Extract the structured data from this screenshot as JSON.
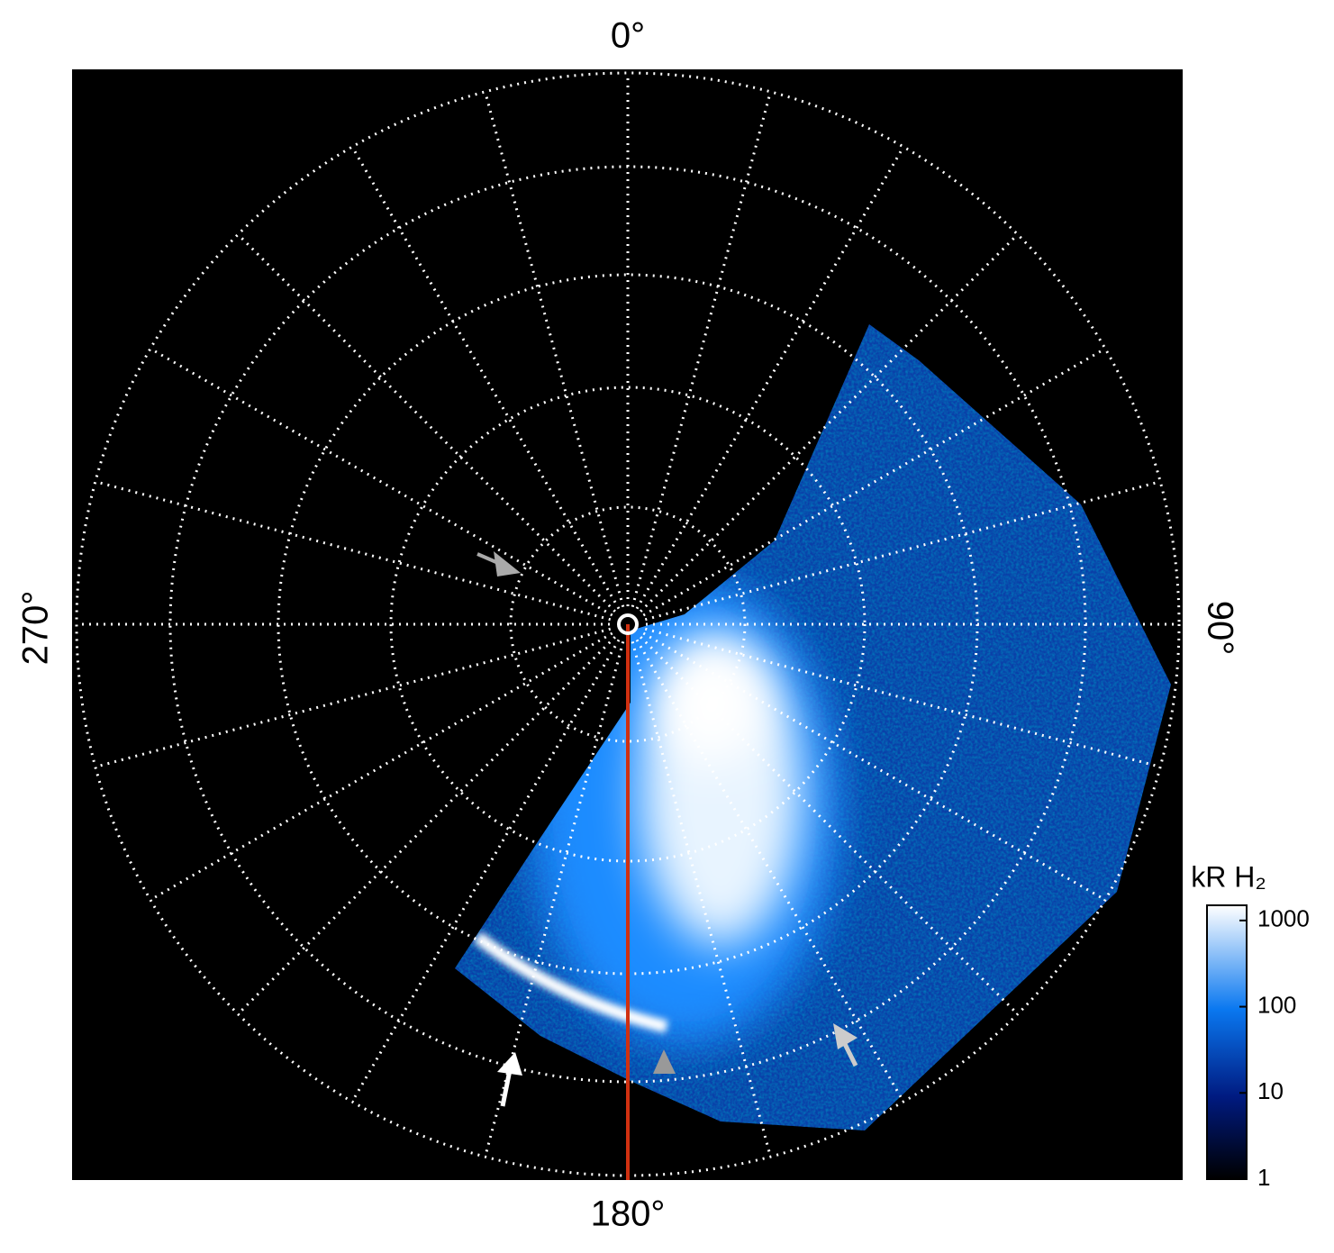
{
  "angle_labels": {
    "top": "0°",
    "right": "90°",
    "bottom": "180°",
    "left": "270°"
  },
  "colorbar": {
    "title": "kR H₂",
    "scale": "log",
    "lim": [
      1,
      1500
    ],
    "ticks": [
      1,
      10,
      100,
      1000
    ]
  }
}
